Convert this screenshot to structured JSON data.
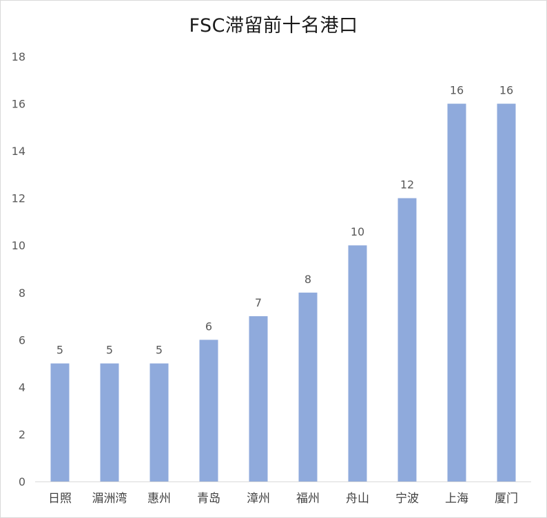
{
  "chart_data": {
    "type": "bar",
    "title": "FSC滞留前十名港口",
    "categories": [
      "日照",
      "湄洲湾",
      "惠州",
      "青岛",
      "漳州",
      "福州",
      "舟山",
      "宁波",
      "上海",
      "厦门"
    ],
    "values": [
      5,
      5,
      5,
      6,
      7,
      8,
      10,
      12,
      16,
      16
    ],
    "ylim": [
      0,
      18
    ],
    "yticks": [
      0,
      2,
      4,
      6,
      8,
      10,
      12,
      14,
      16,
      18
    ],
    "grid": false,
    "legend": "none",
    "bar_color": "#8faadc",
    "axis_color": "#d9d9d9"
  }
}
